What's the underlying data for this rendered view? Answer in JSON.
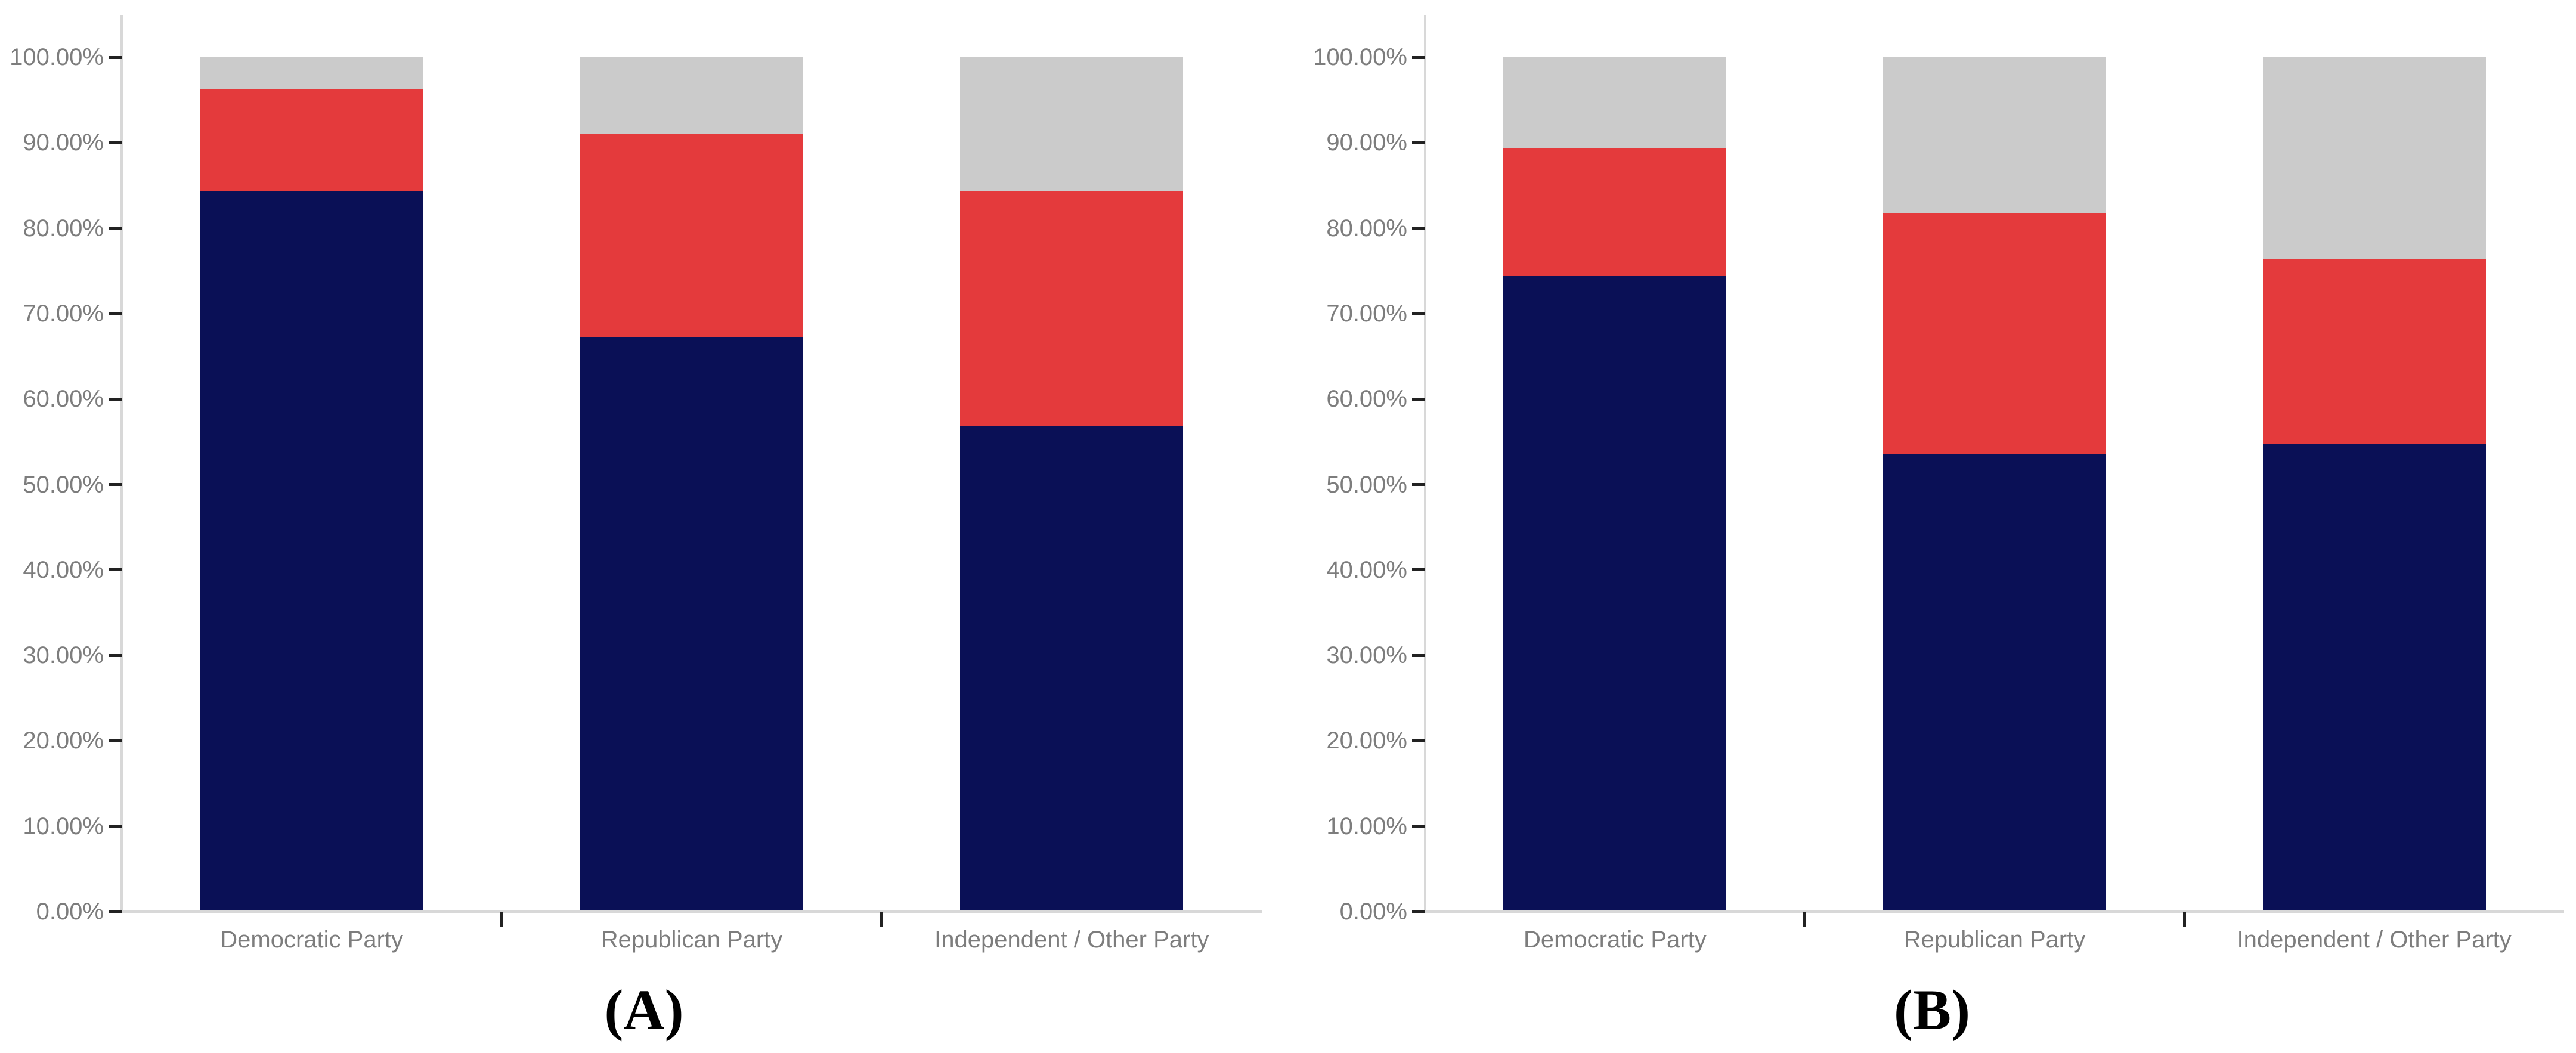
{
  "palette": {
    "navy": "#0a1056",
    "red": "#e43a3c",
    "gray": "#cbcbcb",
    "axis_line": "#d8d8d8",
    "tick_mark": "#222222",
    "label_text": "#7d7d7d",
    "caption_text": "#000000",
    "background": "#ffffff"
  },
  "y_axis": {
    "tick_labels": [
      "100.00%",
      "90.00%",
      "80.00%",
      "70.00%",
      "60.00%",
      "50.00%",
      "40.00%",
      "30.00%",
      "20.00%",
      "10.00%",
      "0.00%"
    ]
  },
  "chart_data": [
    {
      "id": "chartA",
      "panel_label": "(A)",
      "type": "bar",
      "stacked": true,
      "value_unit": "percent",
      "title": "",
      "xlabel": "",
      "ylabel": "",
      "ylim": [
        0,
        100
      ],
      "ytick_step": 10,
      "ytick_format": "0.00%",
      "grid": false,
      "legend": "none",
      "categories": [
        "Democratic Party",
        "Republican Party",
        "Independent / Other Party"
      ],
      "series": [
        {
          "name": "navy",
          "color_key": "navy",
          "values": [
            84.3,
            67.3,
            56.8
          ]
        },
        {
          "name": "red",
          "color_key": "red",
          "values": [
            11.9,
            23.8,
            27.6
          ]
        },
        {
          "name": "gray",
          "color_key": "gray",
          "values": [
            3.8,
            8.9,
            15.6
          ]
        }
      ]
    },
    {
      "id": "chartB",
      "panel_label": "(B)",
      "type": "bar",
      "stacked": true,
      "value_unit": "percent",
      "title": "",
      "xlabel": "",
      "ylabel": "",
      "ylim": [
        0,
        100
      ],
      "ytick_step": 10,
      "ytick_format": "0.00%",
      "grid": false,
      "legend": "none",
      "categories": [
        "Democratic Party",
        "Republican Party",
        "Independent / Other Party"
      ],
      "series": [
        {
          "name": "navy",
          "color_key": "navy",
          "values": [
            74.4,
            53.5,
            54.8
          ]
        },
        {
          "name": "red",
          "color_key": "red",
          "values": [
            14.9,
            28.3,
            21.6
          ]
        },
        {
          "name": "gray",
          "color_key": "gray",
          "values": [
            10.7,
            18.2,
            23.6
          ]
        }
      ]
    }
  ]
}
